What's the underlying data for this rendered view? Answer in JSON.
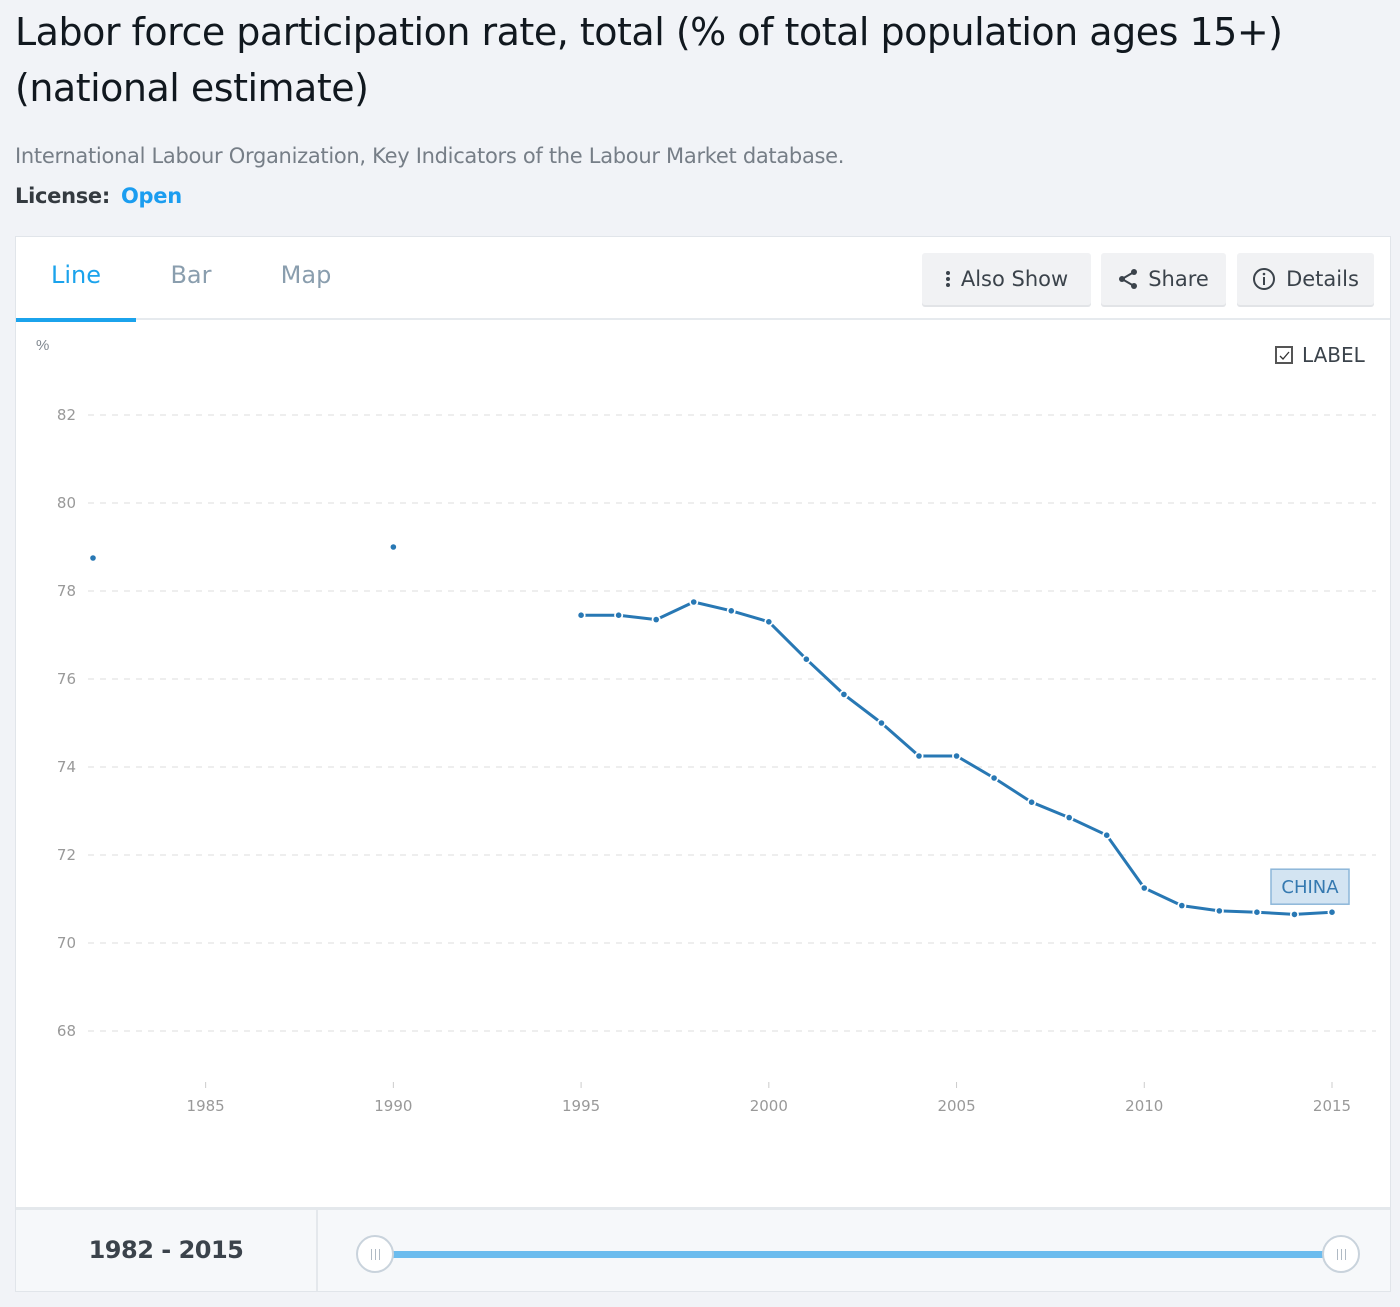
{
  "page": {
    "title": "Labor force participation rate, total (% of total population ages 15+) (national estimate)",
    "source": "International Labour Organization, Key Indicators of the Labour Market database.",
    "license_label": "License:",
    "license_value": "Open"
  },
  "tabs": [
    {
      "label": "Line",
      "active": true
    },
    {
      "label": "Bar",
      "active": false
    },
    {
      "label": "Map",
      "active": false
    }
  ],
  "toolbar": {
    "also_show": "Also Show",
    "share": "Share",
    "details": "Details",
    "label_toggle": "LABEL",
    "label_checked": true
  },
  "colors": {
    "accent": "#1ba3ec",
    "series": "#2878b4",
    "slider": "#6bbcee"
  },
  "range": {
    "label": "1982 - 2015",
    "start": 1982,
    "end": 2015
  },
  "chart_data": {
    "type": "line",
    "title": "Labor force participation rate, total (% of total population ages 15+) (national estimate)",
    "xlabel": "",
    "ylabel": "%",
    "xlim": [
      1982,
      2015
    ],
    "ylim": [
      67,
      83.5
    ],
    "yticks": [
      68,
      70,
      72,
      74,
      76,
      78,
      80,
      82
    ],
    "xticks": [
      1985,
      1990,
      1995,
      2000,
      2005,
      2010,
      2015
    ],
    "grid": true,
    "legend": "inline-end-label",
    "series": [
      {
        "name": "CHINA",
        "label": "CHINA",
        "x": [
          1982,
          1990,
          1995,
          1996,
          1997,
          1998,
          1999,
          2000,
          2001,
          2002,
          2003,
          2004,
          2005,
          2006,
          2007,
          2008,
          2009,
          2010,
          2011,
          2012,
          2013,
          2014,
          2015
        ],
        "values": [
          78.75,
          79.0,
          77.45,
          77.45,
          77.35,
          77.75,
          77.55,
          77.3,
          76.45,
          75.65,
          75.0,
          74.25,
          74.25,
          73.75,
          73.2,
          72.85,
          72.45,
          71.25,
          70.85,
          70.73,
          70.7,
          70.65,
          70.7
        ]
      }
    ]
  }
}
